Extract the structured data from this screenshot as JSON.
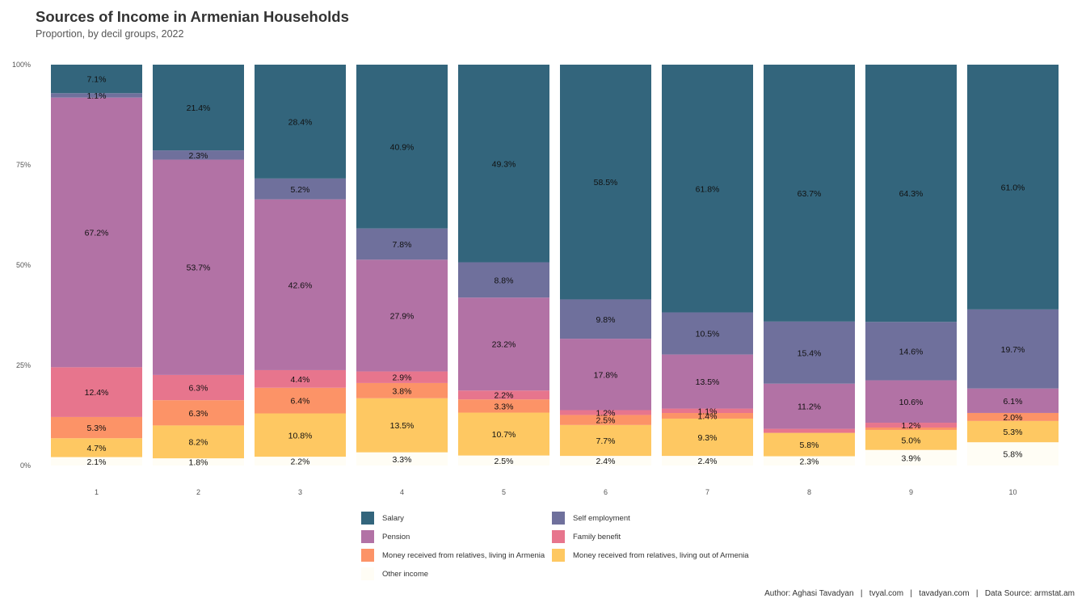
{
  "chart_data": {
    "type": "bar",
    "stacked": true,
    "title": "Sources of Income in Armenian Households",
    "subtitle": "Proportion, by decil groups, 2022",
    "caption": "Author: Aghasi Tavadyan   |   tvyal.com   |   tavadyan.com   |   Data Source: armstat.am",
    "categories": [
      "1",
      "2",
      "3",
      "4",
      "5",
      "6",
      "7",
      "8",
      "9",
      "10"
    ],
    "y_ticks": [
      "0%",
      "25%",
      "50%",
      "75%",
      "100%"
    ],
    "ylim": [
      0,
      100
    ],
    "series": [
      {
        "name": "Other income",
        "color": "#fffdf5",
        "values": [
          2.1,
          1.8,
          2.2,
          3.3,
          2.5,
          2.4,
          2.4,
          2.3,
          3.9,
          5.8
        ]
      },
      {
        "name": "Money received from relatives, living out of Armenia",
        "color": "#fec862",
        "values": [
          4.7,
          8.2,
          10.8,
          13.5,
          10.7,
          7.7,
          9.3,
          5.8,
          5.0,
          5.3
        ]
      },
      {
        "name": "Money received from relatives, living in Armenia",
        "color": "#fc9367",
        "values": [
          5.3,
          6.3,
          6.4,
          3.8,
          3.3,
          2.5,
          1.4,
          0.0,
          0.6,
          2.0
        ]
      },
      {
        "name": "Family benefit",
        "color": "#e7758d",
        "values": [
          12.4,
          6.3,
          4.4,
          2.9,
          2.2,
          1.2,
          1.1,
          1.0,
          1.2,
          0.0
        ]
      },
      {
        "name": "Pension",
        "color": "#b272a5",
        "values": [
          67.2,
          53.7,
          42.6,
          27.9,
          23.2,
          17.8,
          13.5,
          11.2,
          10.6,
          6.1
        ]
      },
      {
        "name": "Self employment",
        "color": "#6f709c",
        "values": [
          1.1,
          2.3,
          5.2,
          7.8,
          8.8,
          9.8,
          10.5,
          15.4,
          14.6,
          19.7
        ]
      },
      {
        "name": "Salary",
        "color": "#33657c",
        "values": [
          7.1,
          21.4,
          28.4,
          40.9,
          49.3,
          58.5,
          61.8,
          63.7,
          64.3,
          61.0
        ]
      }
    ],
    "data_labels": [
      [
        "2.1%",
        "4.7%",
        "5.3%",
        "12.4%",
        "67.2%",
        "1.1%",
        "7.1%"
      ],
      [
        "1.8%",
        "8.2%",
        "6.3%",
        "6.3%",
        "53.7%",
        "2.3%",
        "21.4%"
      ],
      [
        "2.2%",
        "10.8%",
        "6.4%",
        "4.4%",
        "42.6%",
        "5.2%",
        "28.4%"
      ],
      [
        "3.3%",
        "13.5%",
        "3.8%",
        "2.9%",
        "27.9%",
        "7.8%",
        "40.9%"
      ],
      [
        "2.5%",
        "10.7%",
        "3.3%",
        "2.2%",
        "23.2%",
        "8.8%",
        "49.3%"
      ],
      [
        "2.4%",
        "7.7%",
        "2.5%",
        "1.2%",
        "17.8%",
        "9.8%",
        "58.5%"
      ],
      [
        "2.4%",
        "9.3%",
        "1.4%",
        "1.1%",
        "13.5%",
        "10.5%",
        "61.8%"
      ],
      [
        "2.3%",
        "5.8%",
        "",
        "",
        "11.2%",
        "15.4%",
        "63.7%"
      ],
      [
        "3.9%",
        "5.0%",
        "",
        "1.2%",
        "10.6%",
        "14.6%",
        "64.3%"
      ],
      [
        "5.8%",
        "5.3%",
        "2.0%",
        "",
        "6.1%",
        "19.7%",
        "61.0%"
      ]
    ],
    "legend": {
      "position": "bottom",
      "items": [
        {
          "name": "Salary",
          "color": "#33657c"
        },
        {
          "name": "Self employment",
          "color": "#6f709c"
        },
        {
          "name": "Pension",
          "color": "#b272a5"
        },
        {
          "name": "Family benefit",
          "color": "#e7758d"
        },
        {
          "name": "Money received from relatives, living in Armenia",
          "color": "#fc9367"
        },
        {
          "name": "Money received from relatives, living out of Armenia",
          "color": "#fec862"
        },
        {
          "name": "Other income",
          "color": "#fffdf5"
        }
      ]
    },
    "grid": false
  }
}
